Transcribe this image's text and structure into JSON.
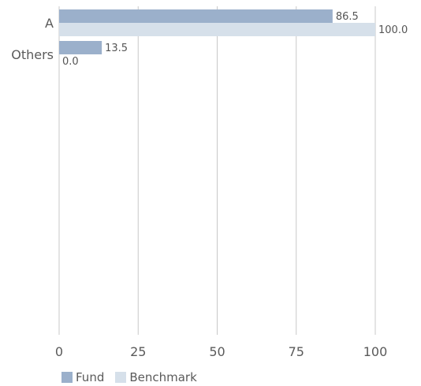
{
  "chart_data": {
    "type": "bar",
    "orientation": "horizontal",
    "categories": [
      "A",
      "Others"
    ],
    "series": [
      {
        "name": "Fund",
        "values": [
          86.5,
          13.5
        ],
        "color": "#9bb0cb"
      },
      {
        "name": "Benchmark",
        "values": [
          100.0,
          0.0
        ],
        "color": "#d6e0ea"
      }
    ],
    "data_labels": [
      [
        "86.5",
        "13.5"
      ],
      [
        "100.0",
        "0.0"
      ]
    ],
    "xlim": [
      0,
      100
    ],
    "x_ticks": [
      "0",
      "25",
      "50",
      "75",
      "100"
    ],
    "grid": true,
    "legend_position": "bottom-left"
  },
  "colors": {
    "grid": "#c8c8c8",
    "axis_text": "#5a5a5a",
    "label_text": "#555555"
  }
}
